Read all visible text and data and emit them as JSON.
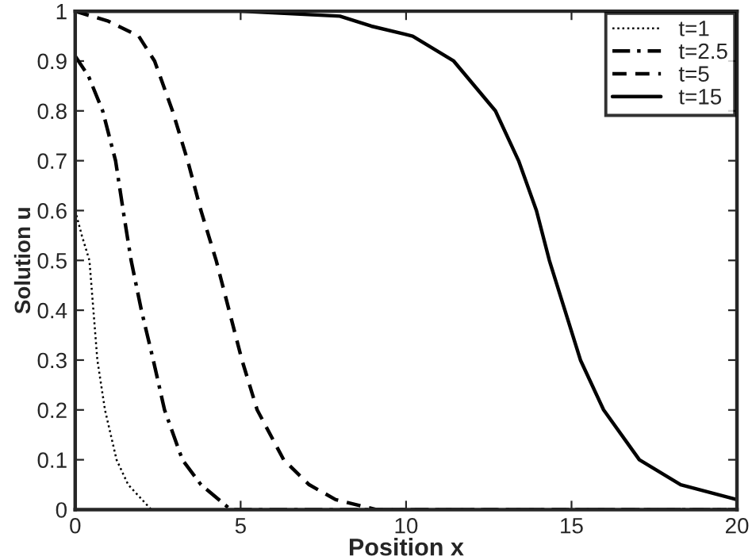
{
  "chart_data": {
    "type": "line",
    "xlabel": "Position x",
    "ylabel": "Solution u",
    "xlim": [
      0,
      20
    ],
    "ylim": [
      0,
      1
    ],
    "xticks": [
      0,
      5,
      10,
      15,
      20
    ],
    "yticks": [
      0,
      0.1,
      0.2,
      0.3,
      0.4,
      0.5,
      0.6,
      0.7,
      0.8,
      0.9,
      1
    ],
    "grid": false,
    "legend": "top right",
    "marker": "none",
    "series": [
      {
        "name": "t=1",
        "color": "#000000",
        "line_style": "dotted",
        "x": [
          0,
          0.2,
          0.43,
          0.55,
          0.67,
          0.9,
          1.25,
          1.6,
          2.3
        ],
        "values": [
          0.6,
          0.55,
          0.5,
          0.4,
          0.3,
          0.2,
          0.1,
          0.05,
          0
        ]
      },
      {
        "name": "t=2.5",
        "color": "#000000",
        "line_style": "dashdot",
        "x": [
          0,
          0.4,
          0.83,
          1.22,
          1.45,
          1.69,
          2.0,
          2.36,
          2.7,
          3.24,
          3.8,
          4.7,
          20
        ],
        "values": [
          0.91,
          0.87,
          0.8,
          0.7,
          0.6,
          0.5,
          0.4,
          0.3,
          0.2,
          0.1,
          0.05,
          0,
          0
        ]
      },
      {
        "name": "t=5",
        "color": "#000000",
        "line_style": "dashed",
        "x": [
          0,
          1.0,
          1.92,
          2.4,
          2.94,
          3.4,
          3.8,
          4.26,
          4.65,
          5.04,
          5.5,
          6.3,
          7.07,
          7.87,
          9.1,
          20
        ],
        "values": [
          1.0,
          0.98,
          0.95,
          0.9,
          0.8,
          0.7,
          0.6,
          0.5,
          0.4,
          0.3,
          0.2,
          0.1,
          0.05,
          0.02,
          0,
          0
        ]
      },
      {
        "name": "t=15",
        "color": "#000000",
        "line_style": "solid",
        "x": [
          0,
          5,
          8,
          8.95,
          10.2,
          11.44,
          12.7,
          13.4,
          13.94,
          14.33,
          14.8,
          15.27,
          15.97,
          17.05,
          18.3,
          20
        ],
        "values": [
          1.0,
          1.0,
          0.99,
          0.97,
          0.95,
          0.9,
          0.8,
          0.7,
          0.6,
          0.5,
          0.4,
          0.3,
          0.2,
          0.1,
          0.05,
          0.02
        ]
      }
    ]
  }
}
